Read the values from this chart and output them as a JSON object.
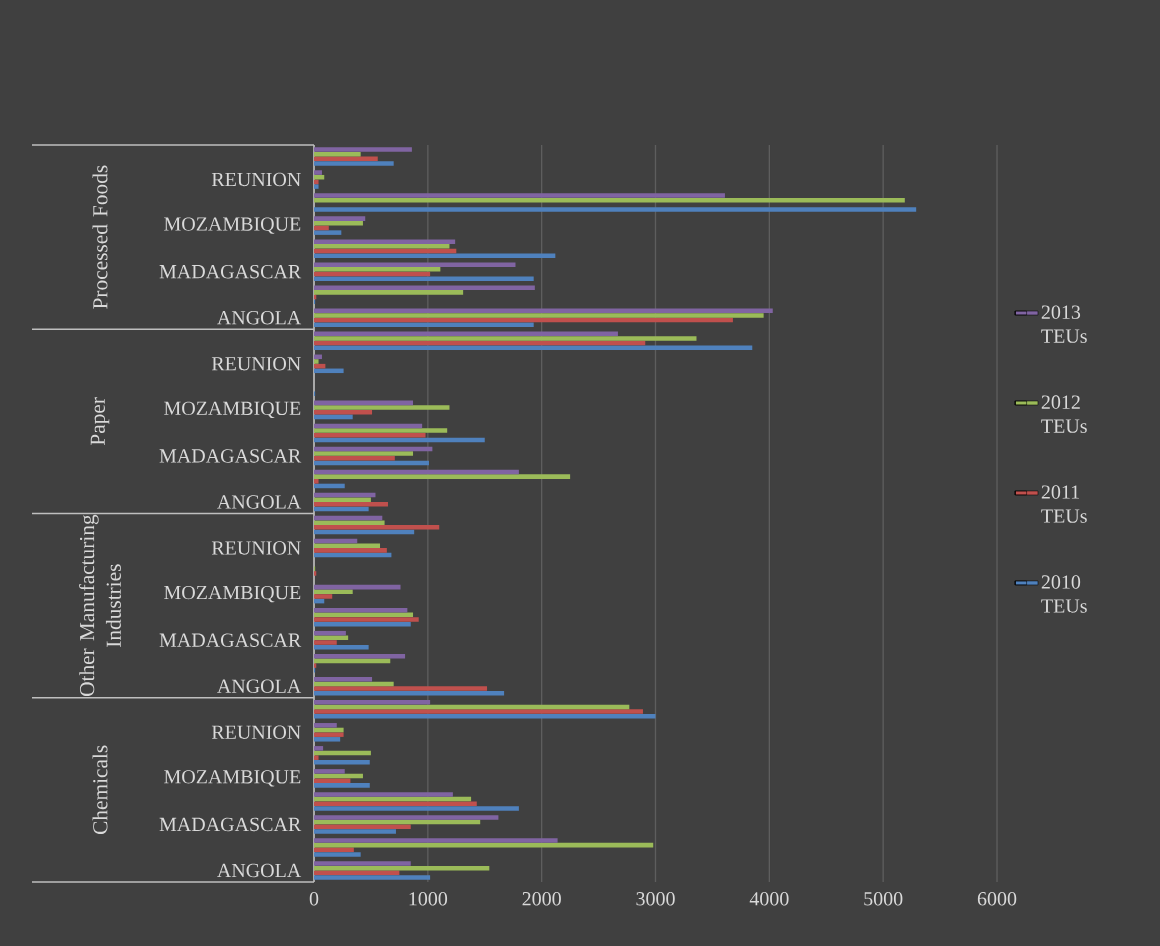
{
  "chart_data": {
    "type": "bar",
    "orientation": "horizontal",
    "categories": [
      null,
      "REUNION",
      null,
      "MOZAMBIQUE",
      null,
      "MADAGASCAR",
      null,
      "ANGOLA",
      null,
      "REUNION",
      null,
      "MOZAMBIQUE",
      null,
      "MADAGASCAR",
      null,
      "ANGOLA",
      null,
      "REUNION",
      null,
      "MOZAMBIQUE",
      null,
      "MADAGASCAR",
      null,
      "ANGOLA",
      null,
      "REUNION",
      null,
      "MOZAMBIQUE",
      null,
      "MADAGASCAR",
      null,
      "ANGOLA"
    ],
    "series": [
      {
        "name": "2010 TEUs",
        "color": "#4f81bd",
        "values": [
          700,
          40,
          5290,
          240,
          2120,
          1930,
          10,
          1930,
          3850,
          260,
          10,
          340,
          1500,
          1010,
          270,
          480,
          880,
          680,
          0,
          90,
          850,
          480,
          10,
          1670,
          3000,
          230,
          490,
          490,
          1800,
          720,
          410,
          1020
        ]
      },
      {
        "name": "2011 TEUs",
        "color": "#c0504d",
        "values": [
          560,
          40,
          0,
          130,
          1250,
          1020,
          20,
          3680,
          2910,
          100,
          0,
          510,
          980,
          710,
          40,
          650,
          1100,
          640,
          20,
          160,
          920,
          200,
          20,
          1520,
          2890,
          260,
          40,
          320,
          1430,
          850,
          350,
          750
        ]
      },
      {
        "name": "2012 TEUs",
        "color": "#9bbb59",
        "values": [
          410,
          90,
          5190,
          430,
          1190,
          1110,
          1310,
          3950,
          3360,
          40,
          0,
          1190,
          1170,
          870,
          2250,
          500,
          620,
          580,
          10,
          340,
          870,
          300,
          670,
          700,
          2770,
          260,
          500,
          430,
          1380,
          1460,
          2980,
          1540
        ]
      },
      {
        "name": "2013 TEUs",
        "color": "#8064a2",
        "values": [
          860,
          70,
          3610,
          450,
          1240,
          1770,
          1940,
          4030,
          2670,
          70,
          0,
          870,
          950,
          1040,
          1800,
          540,
          600,
          380,
          0,
          760,
          820,
          280,
          800,
          510,
          1020,
          200,
          80,
          270,
          1220,
          1620,
          2140,
          850
        ]
      }
    ],
    "xlim": [
      0,
      6000
    ],
    "xticks": [
      0,
      1000,
      2000,
      3000,
      4000,
      5000,
      6000
    ],
    "grid": "x",
    "legend": "right",
    "annotations": [
      "Processed Foods",
      "Paper",
      "Other Manufacturing Industries",
      "Chemicals"
    ]
  }
}
